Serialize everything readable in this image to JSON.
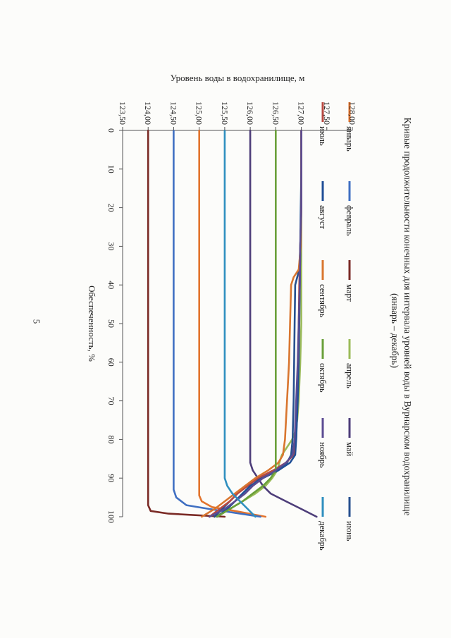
{
  "page": {
    "number": "5"
  },
  "chart_data": {
    "type": "line",
    "title": "Кривые продолжительности конечных для интервала уровней воды в Вурнарском водохранилище",
    "subtitle": "(январь – декабрь)",
    "xlabel": "Обеспеченность, %",
    "ylabel": "Уровень воды в водохранилище, м",
    "xlim": [
      0,
      100
    ],
    "ylim": [
      123.5,
      128.0
    ],
    "x_ticks": [
      "0",
      "10",
      "20",
      "30",
      "40",
      "50",
      "60",
      "70",
      "80",
      "90",
      "100"
    ],
    "y_ticks": [
      "123,50",
      "124,00",
      "124,50",
      "125,00",
      "125,50",
      "126,00",
      "126,50",
      "127,00",
      "127,50",
      "128,00"
    ],
    "grid": false,
    "legend_position": "top",
    "series": [
      {
        "name": "январь",
        "color": "#e2742e",
        "x": [
          0,
          84,
          88,
          91,
          93,
          94.5,
          96,
          97.5,
          98.5,
          100
        ],
        "y": [
          125.0,
          125.0,
          125.0,
          125.0,
          125.0,
          125.0,
          125.05,
          125.25,
          125.7,
          126.3
        ]
      },
      {
        "name": "февраль",
        "color": "#3f6fc2",
        "x": [
          0,
          90,
          93,
          95,
          97,
          98,
          99,
          100
        ],
        "y": [
          124.5,
          124.5,
          124.5,
          124.55,
          124.75,
          125.2,
          125.7,
          126.2
        ]
      },
      {
        "name": "март",
        "color": "#7a2a25",
        "x": [
          0,
          95,
          97,
          98.5,
          99.2,
          100
        ],
        "y": [
          124.0,
          124.0,
          124.0,
          124.05,
          124.4,
          125.5
        ]
      },
      {
        "name": "апрель",
        "color": "#9bbb59",
        "x": [
          0,
          5,
          10,
          20,
          30,
          40,
          50,
          60,
          70,
          75,
          78,
          80,
          82,
          84,
          86,
          88,
          90,
          92,
          94,
          96,
          98,
          100
        ],
        "y": [
          127.0,
          127.0,
          127.0,
          127.0,
          127.0,
          127.0,
          127.0,
          126.98,
          126.95,
          126.92,
          126.88,
          126.82,
          126.72,
          126.62,
          126.57,
          126.53,
          126.43,
          126.3,
          126.1,
          125.85,
          125.6,
          125.3
        ]
      },
      {
        "name": "май",
        "color": "#4d3d79",
        "x": [
          0,
          84,
          86,
          88,
          90,
          92,
          94,
          96,
          98,
          100
        ],
        "y": [
          126.0,
          126.0,
          126.0,
          126.05,
          126.15,
          126.25,
          126.4,
          126.7,
          127.0,
          127.3
        ]
      },
      {
        "name": "июнь",
        "color": "#26508f",
        "x": [
          0,
          5,
          10,
          20,
          30,
          36,
          38,
          40,
          50,
          60,
          70,
          80,
          84,
          86,
          88,
          90,
          92,
          94,
          96,
          98,
          100
        ],
        "y": [
          127.0,
          127.0,
          127.0,
          127.0,
          126.98,
          126.96,
          126.92,
          126.88,
          126.87,
          126.86,
          126.85,
          126.83,
          126.8,
          126.72,
          126.5,
          126.2,
          125.9,
          125.75,
          125.6,
          125.45,
          125.3
        ]
      },
      {
        "name": "июль",
        "color": "#b84a43",
        "x": [
          0,
          10,
          20,
          30,
          40,
          50,
          60,
          70,
          80,
          84,
          86,
          88,
          90,
          92,
          94,
          96,
          98,
          100
        ],
        "y": [
          127.0,
          127.0,
          127.0,
          126.98,
          126.96,
          126.95,
          126.94,
          126.92,
          126.9,
          126.85,
          126.7,
          126.45,
          126.15,
          125.95,
          125.75,
          125.6,
          125.4,
          125.2
        ]
      },
      {
        "name": "август",
        "color": "#1f4e96",
        "x": [
          0,
          5,
          8,
          10,
          20,
          30,
          40,
          50,
          60,
          70,
          80,
          84,
          86,
          88,
          90,
          92,
          94,
          96,
          98,
          100
        ],
        "y": [
          127.0,
          127.0,
          127.0,
          127.0,
          126.99,
          126.98,
          126.97,
          126.96,
          126.95,
          126.93,
          126.9,
          126.88,
          126.78,
          126.55,
          126.25,
          126.0,
          125.85,
          125.7,
          125.55,
          125.35
        ]
      },
      {
        "name": "сентябрь",
        "color": "#d9762f",
        "x": [
          0,
          10,
          20,
          30,
          36,
          38,
          40,
          50,
          60,
          70,
          80,
          84,
          86,
          88,
          90,
          92,
          94,
          96,
          98,
          100
        ],
        "y": [
          127.0,
          127.0,
          127.0,
          126.99,
          126.95,
          126.85,
          126.8,
          126.78,
          126.76,
          126.72,
          126.68,
          126.64,
          126.55,
          126.35,
          126.1,
          125.9,
          125.7,
          125.5,
          125.3,
          125.05
        ]
      },
      {
        "name": "октябрь",
        "color": "#6aa03a",
        "x": [
          0,
          84,
          88,
          90,
          92,
          94,
          96,
          98,
          100
        ],
        "y": [
          126.5,
          126.5,
          126.5,
          126.4,
          126.25,
          126.05,
          125.85,
          125.6,
          125.35
        ]
      },
      {
        "name": "ноябрь",
        "color": "#5b4c92",
        "x": [
          0,
          10,
          20,
          30,
          40,
          50,
          60,
          70,
          80,
          84,
          86,
          88,
          90,
          92,
          94,
          96,
          98,
          100
        ],
        "y": [
          127.0,
          127.0,
          127.0,
          126.98,
          126.97,
          126.95,
          126.93,
          126.9,
          126.87,
          126.83,
          126.7,
          126.5,
          126.25,
          126.05,
          125.9,
          125.7,
          125.5,
          125.2
        ]
      },
      {
        "name": "декабрь",
        "color": "#2f8fbf",
        "x": [
          0,
          88,
          90,
          92,
          94,
          96,
          98,
          100
        ],
        "y": [
          125.5,
          125.5,
          125.5,
          125.55,
          125.65,
          125.8,
          125.95,
          126.1
        ]
      }
    ]
  }
}
